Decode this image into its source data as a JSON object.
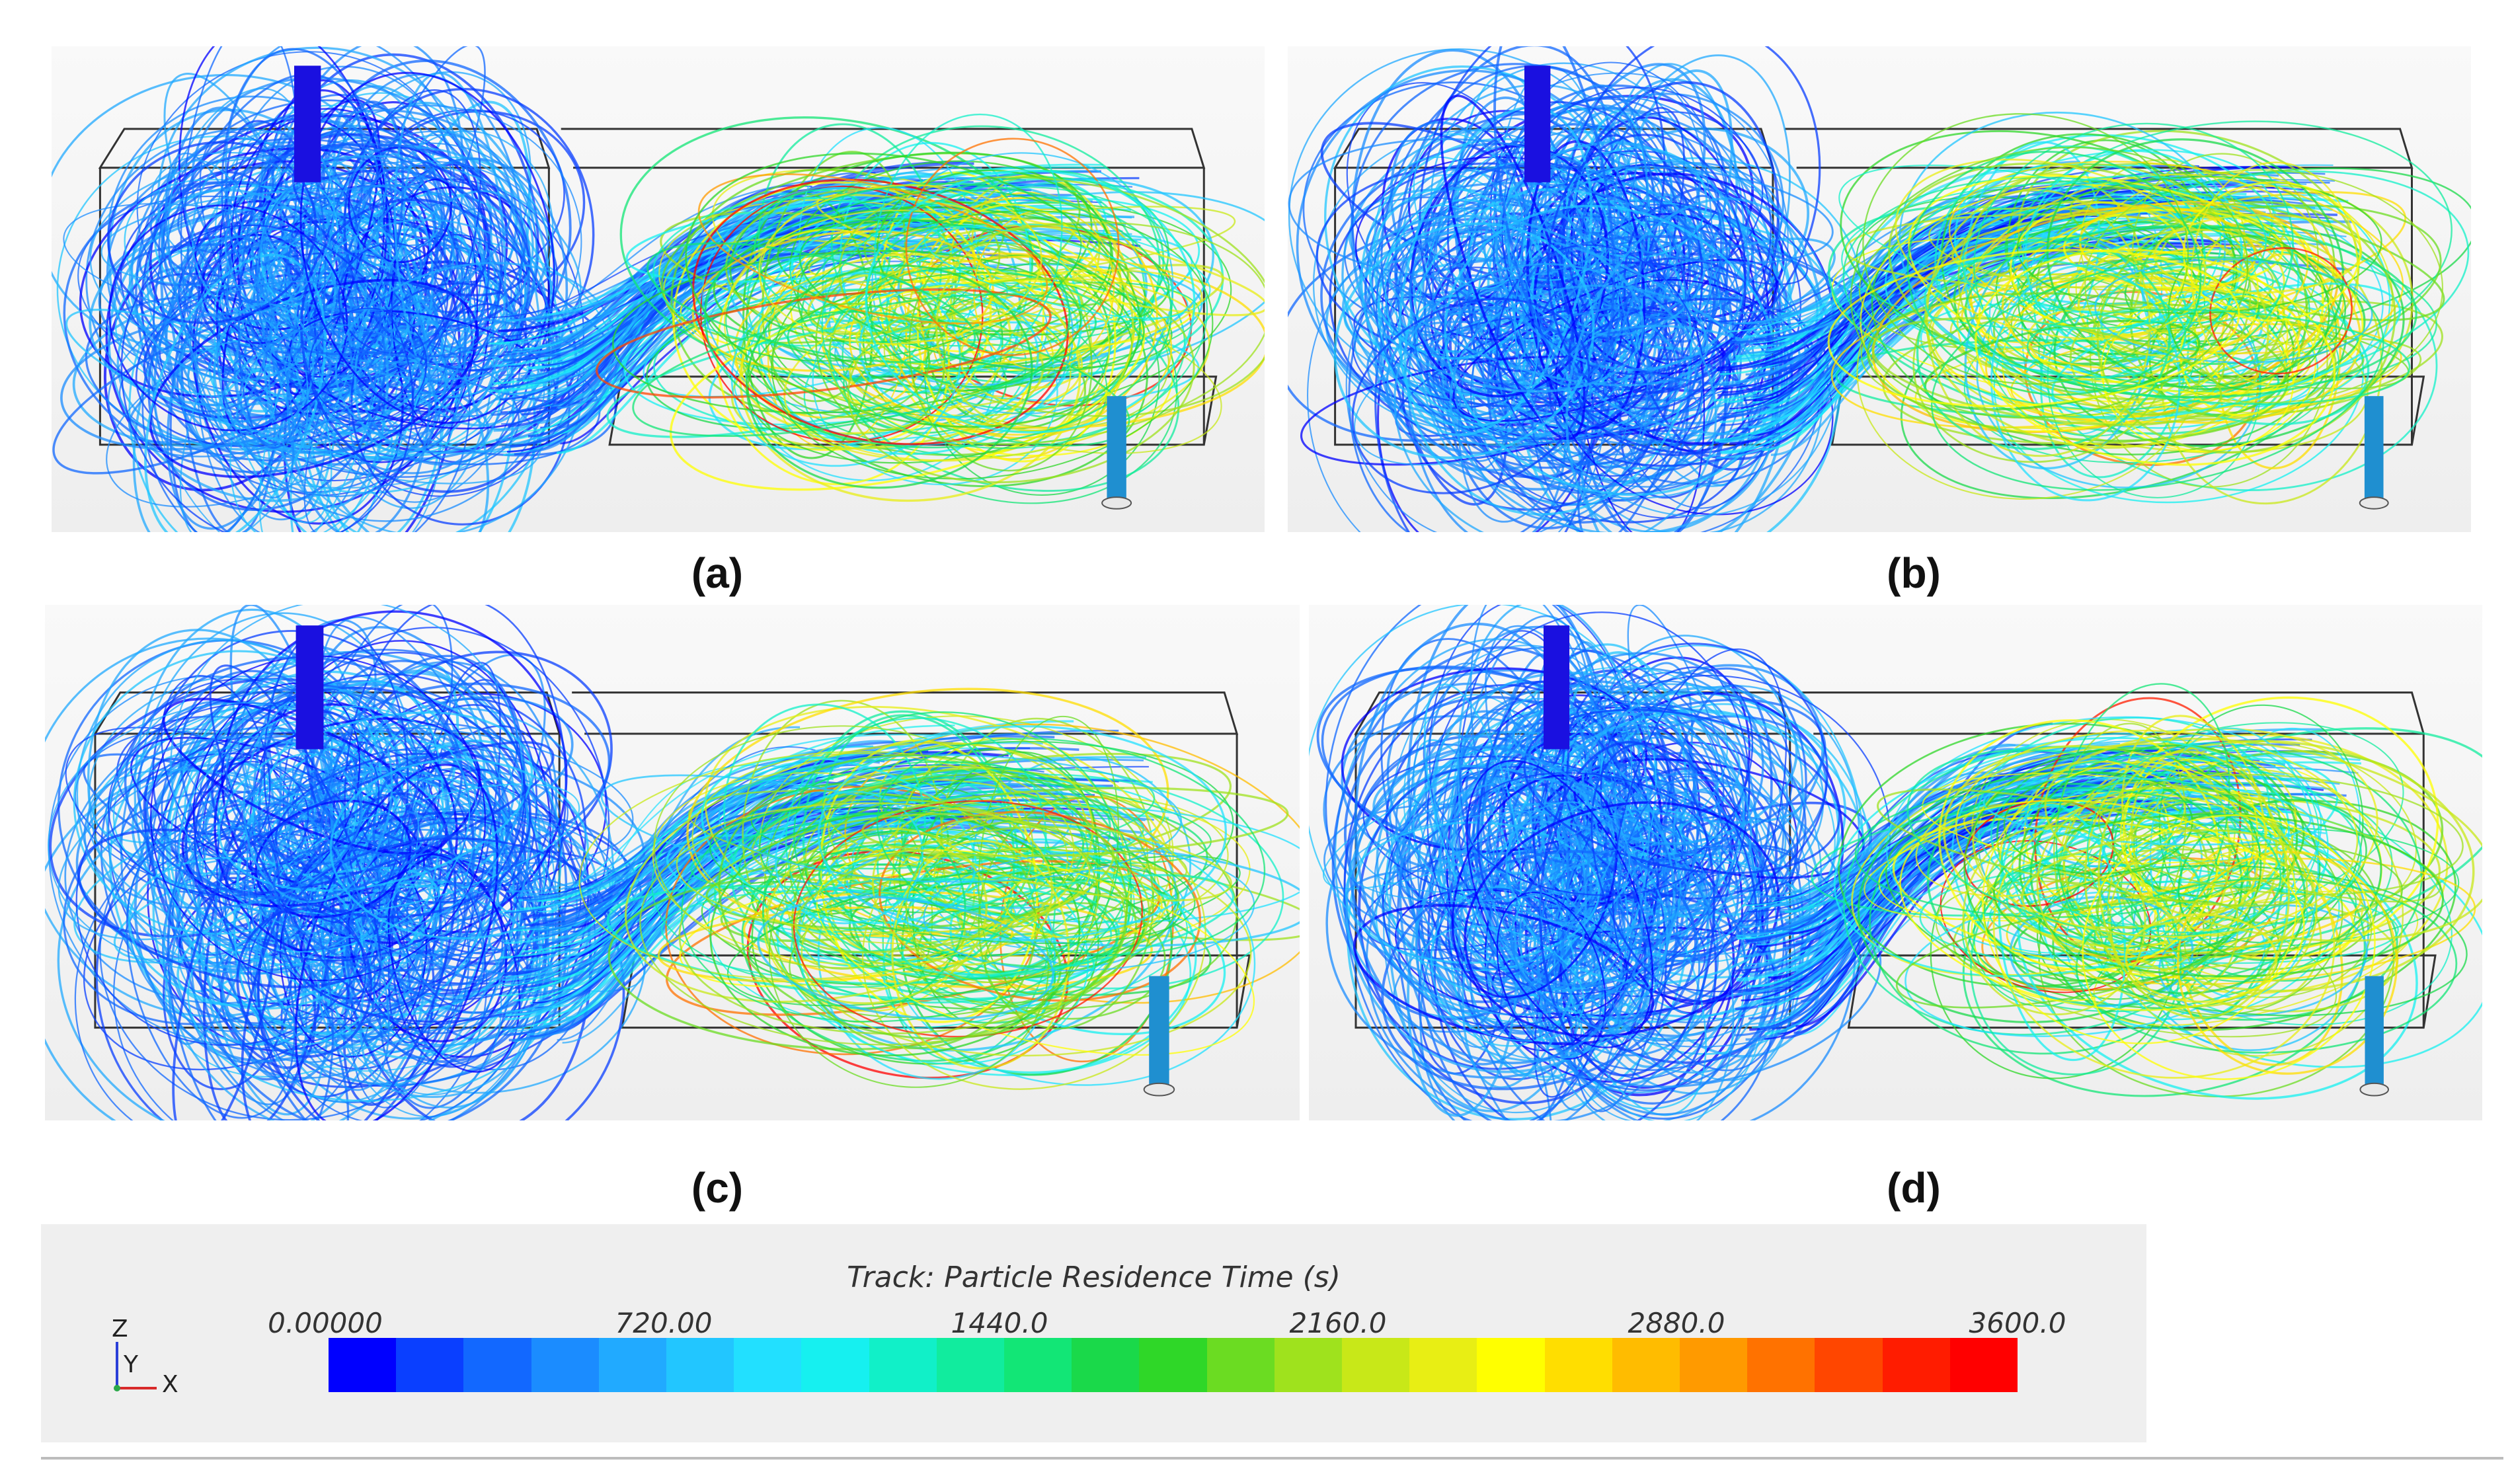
{
  "panels": [
    {
      "id": "a",
      "caption": "(a)"
    },
    {
      "id": "b",
      "caption": "(b)"
    },
    {
      "id": "c",
      "caption": "(c)"
    },
    {
      "id": "d",
      "caption": "(d)"
    }
  ],
  "legend": {
    "title": "Track: Particle Residence Time (s)",
    "ticks": [
      "0.00000",
      "720.00",
      "1440.0",
      "2160.0",
      "2880.0",
      "3600.0"
    ],
    "range": [
      0,
      3600
    ],
    "colormap": [
      "#0000ff",
      "#0a3fff",
      "#1268ff",
      "#1b8cff",
      "#21aaff",
      "#22c6ff",
      "#22e0ff",
      "#16f0f0",
      "#11f0c8",
      "#11ec9e",
      "#12e676",
      "#1ad94a",
      "#2fd728",
      "#6bdc22",
      "#9fe21d",
      "#c8e818",
      "#e8ee14",
      "#ffff00",
      "#ffde00",
      "#ffbc00",
      "#ff9a00",
      "#ff7200",
      "#ff4600",
      "#ff1c00",
      "#ff0000"
    ]
  },
  "axes_triad": {
    "z": "Z",
    "y": "Y",
    "x": "X"
  }
}
